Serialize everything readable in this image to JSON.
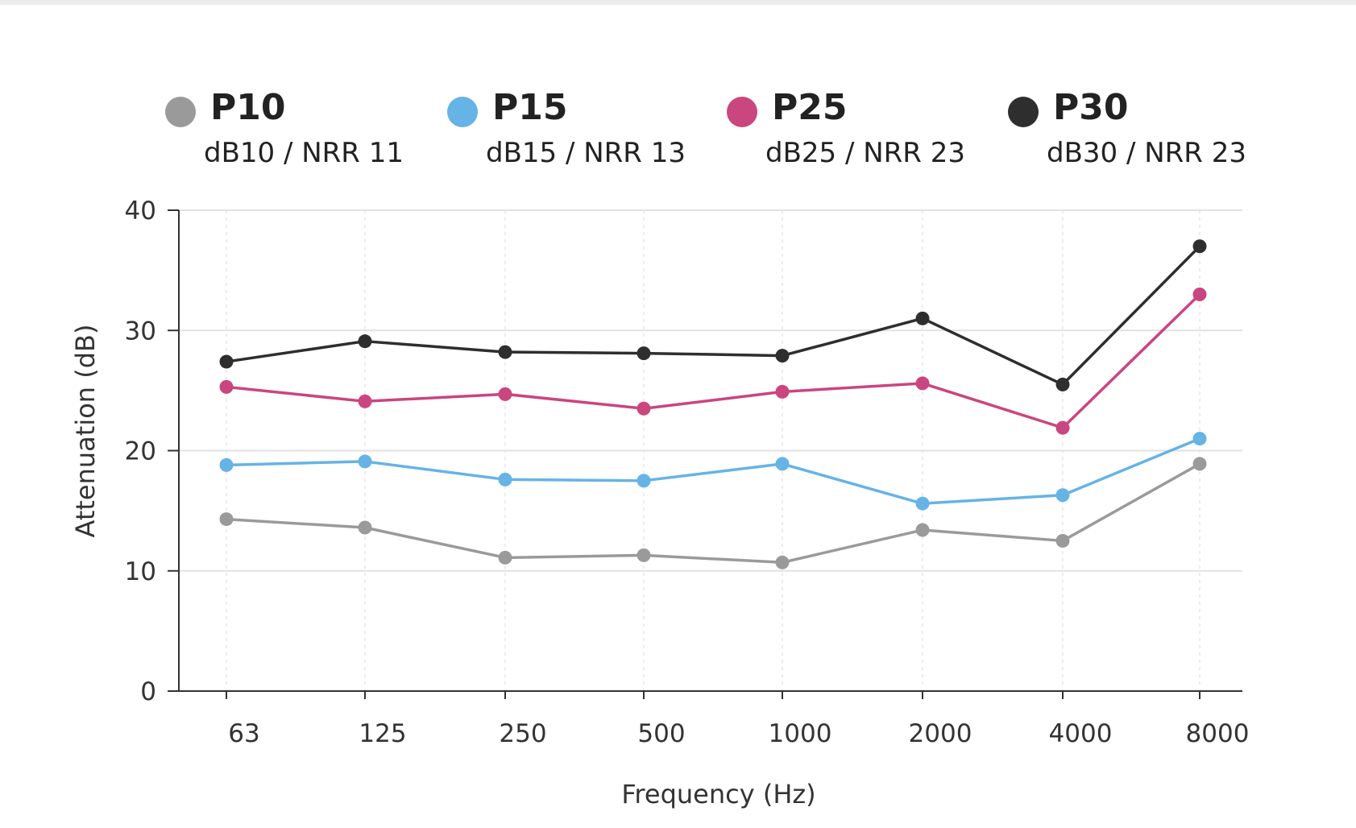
{
  "chart_data": {
    "type": "line",
    "title": "",
    "xlabel": "Frequency (Hz)",
    "ylabel": "Attenuation (dB)",
    "categories": [
      "63",
      "125",
      "250",
      "500",
      "1000",
      "2000",
      "4000",
      "8000"
    ],
    "ylim": [
      0,
      40
    ],
    "yticks": [
      "0",
      "10",
      "20",
      "30",
      "40"
    ],
    "grid": true,
    "legend_position": "top",
    "series": [
      {
        "name": "P10",
        "subtitle": "dB10 / NRR 11",
        "color": "#9a9a9a",
        "values": [
          14.3,
          13.6,
          11.1,
          11.3,
          10.7,
          13.4,
          12.5,
          18.9
        ]
      },
      {
        "name": "P15",
        "subtitle": "dB15 / NRR 13",
        "color": "#66b3e6",
        "values": [
          18.8,
          19.1,
          17.6,
          17.5,
          18.9,
          15.6,
          16.3,
          21.0
        ]
      },
      {
        "name": "P25",
        "subtitle": "dB25 / NRR 23",
        "color": "#c9467f",
        "values": [
          25.3,
          24.1,
          24.7,
          23.5,
          24.9,
          25.6,
          21.9,
          33.0
        ]
      },
      {
        "name": "P30",
        "subtitle": "dB30 / NRR 23",
        "color": "#2e2e2e",
        "values": [
          27.4,
          29.1,
          28.2,
          28.1,
          27.9,
          31.0,
          25.5,
          37.0
        ]
      }
    ]
  }
}
